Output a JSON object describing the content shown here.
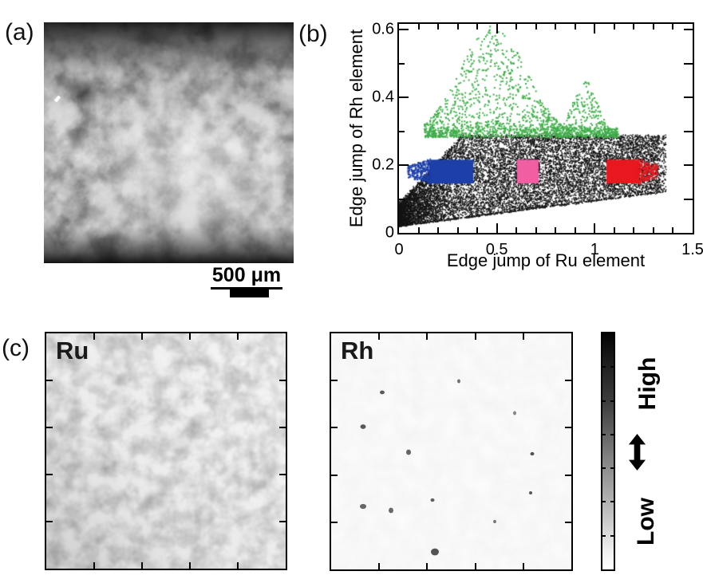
{
  "figure": {
    "panel_a": {
      "label": "(a)",
      "scale_bar_text": "500 μm"
    },
    "panel_b": {
      "label": "(b)"
    },
    "panel_c": {
      "label": "(c)",
      "map1_label": "Ru",
      "map2_label": "Rh",
      "colorbar": {
        "high_label": "High",
        "low_label": "Low",
        "top_color": "#000000",
        "bottom_color": "#ffffff"
      }
    }
  },
  "chart_data": {
    "type": "scatter",
    "title": "",
    "xlabel": "Edge jump of Ru element",
    "ylabel": "Edge jump of Rh element",
    "xlim": [
      0,
      1.5
    ],
    "ylim": [
      0,
      0.617
    ],
    "xticks": [
      0,
      0.5,
      1,
      1.5
    ],
    "xtick_labels": [
      "0",
      "0.5",
      "1",
      "1.5"
    ],
    "yticks": [
      0,
      0.2,
      0.4,
      0.6
    ],
    "ytick_labels": [
      "0",
      "0.2",
      "0.4",
      "0.6"
    ],
    "minor_step": 0.1,
    "grid": false,
    "legend": null,
    "series": [
      {
        "name": "black-dense-pixel-cloud",
        "kind": "wedge",
        "color": "#141414",
        "n": 12500,
        "dot": 1.5,
        "x_max": 1.33,
        "bottom_intercept": 0.022,
        "bottom_slope": 0.075,
        "top_intercept": 0.08,
        "top_slope": 0.62,
        "top_cap": 0.28
      },
      {
        "name": "green-rh-rich-cloud",
        "kind": "plume",
        "color": "#3fae49",
        "n": 1700,
        "dot": 2.0,
        "x_min": 0.13,
        "x_max": 1.12,
        "y_base": 0.282,
        "peaks": [
          {
            "x": 0.48,
            "h": 0.33,
            "w": 0.24
          },
          {
            "x": 0.95,
            "h": 0.17,
            "w": 0.09
          }
        ]
      },
      {
        "name": "blue-roi-box",
        "kind": "roi",
        "color": "#1c3fa8",
        "dot": 1.8,
        "rect": [
          0.16,
          0.146,
          0.38,
          0.216
        ],
        "fuzz": "left",
        "fuzz_extent": 0.115,
        "fuzz_n": 330
      },
      {
        "name": "pink-roi-box",
        "kind": "roi",
        "color": "#ef5fa2",
        "dot": 1.8,
        "rect": [
          0.603,
          0.146,
          0.713,
          0.216
        ],
        "fuzz": "none",
        "fuzz_extent": 0,
        "fuzz_n": 0
      },
      {
        "name": "red-roi-box",
        "kind": "roi",
        "color": "#e7191f",
        "dot": 1.8,
        "rect": [
          1.06,
          0.146,
          1.22,
          0.216
        ],
        "fuzz": "right",
        "fuzz_extent": 0.1,
        "fuzz_n": 300
      }
    ]
  }
}
